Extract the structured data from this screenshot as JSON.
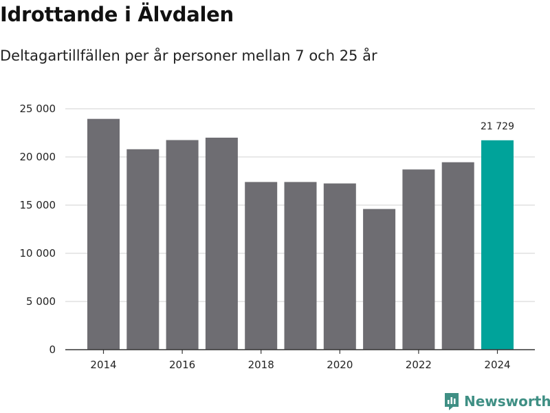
{
  "header": {
    "title": "Idrottande i Älvdalen",
    "subtitle": "Deltagartillfällen per år personer mellan 7 och 25 år"
  },
  "brand": {
    "name": "Newsworthy"
  },
  "colors": {
    "bar": "#6e6d72",
    "highlight": "#00a39a",
    "grid": "#d9d9d9",
    "axis": "#333333",
    "brand": "#3f8f84"
  },
  "chart_data": {
    "type": "bar",
    "title": "Idrottande i Älvdalen",
    "subtitle": "Deltagartillfällen per år personer mellan 7 och 25 år",
    "xlabel": "",
    "ylabel": "",
    "categories": [
      "2014",
      "2015",
      "2016",
      "2017",
      "2018",
      "2019",
      "2020",
      "2021",
      "2022",
      "2023",
      "2024"
    ],
    "values": [
      23950,
      20800,
      21750,
      22000,
      17400,
      17400,
      17250,
      14600,
      18700,
      19450,
      21729
    ],
    "ylim": [
      0,
      25000
    ],
    "yticks": [
      0,
      5000,
      10000,
      15000,
      20000,
      25000
    ],
    "ytick_labels": [
      "0",
      "5 000",
      "10 000",
      "15 000",
      "20 000",
      "25 000"
    ],
    "xtick_labels": [
      "2014",
      "2016",
      "2018",
      "2020",
      "2022",
      "2024"
    ],
    "highlight_index": 10,
    "data_label": "21 729",
    "grid": true
  }
}
